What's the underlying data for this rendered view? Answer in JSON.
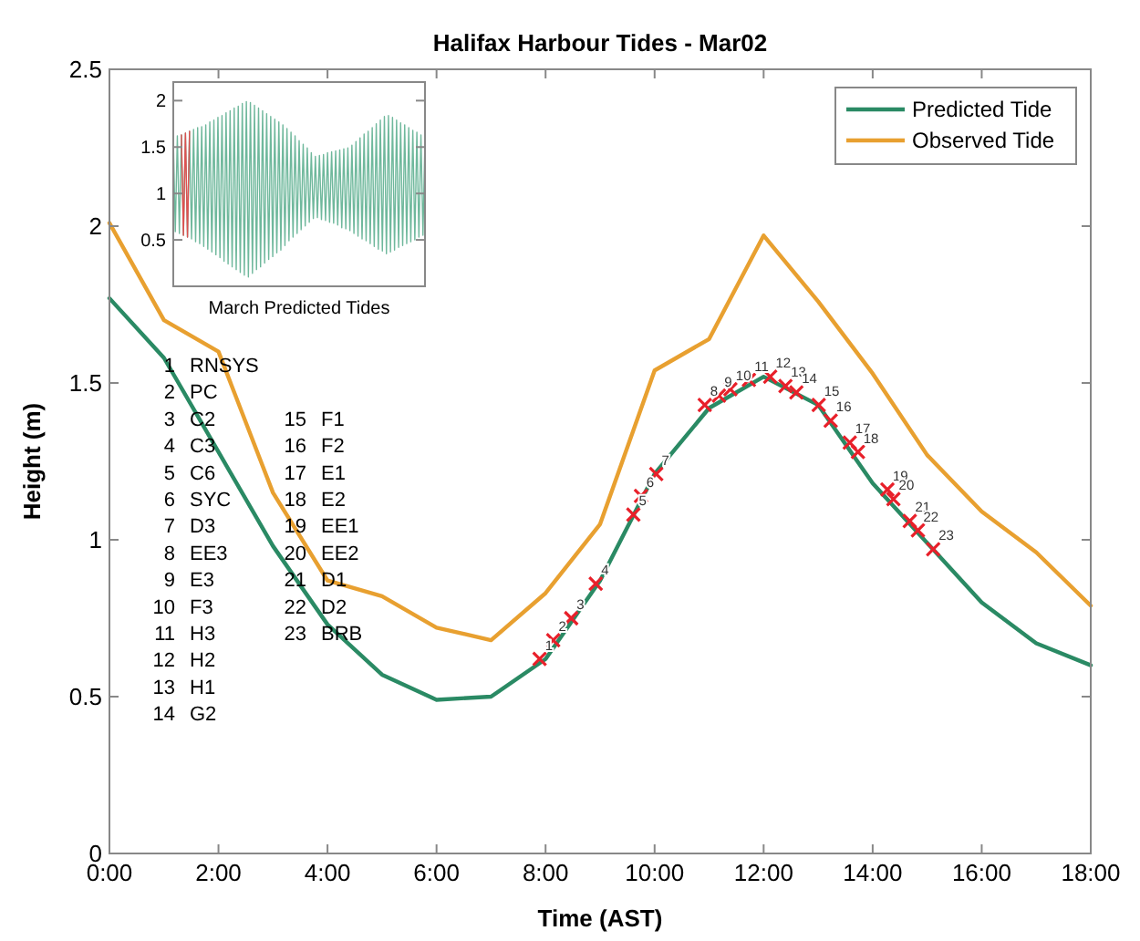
{
  "chart_data": [
    {
      "type": "line",
      "title": "Halifax Harbour Tides - Mar02",
      "xlabel": "Time (AST)",
      "ylabel": "Height (m)",
      "x": [
        0,
        1,
        2,
        3,
        4,
        5,
        6,
        7,
        8,
        9,
        10,
        11,
        12,
        13,
        14,
        15,
        16,
        17,
        18
      ],
      "series": [
        {
          "name": "Predicted Tide",
          "color": "#2a8a64",
          "values": [
            1.77,
            1.58,
            1.28,
            0.98,
            0.73,
            0.57,
            0.49,
            0.5,
            0.62,
            0.87,
            1.21,
            1.42,
            1.52,
            1.43,
            1.18,
            0.99,
            0.8,
            0.67,
            0.6
          ]
        },
        {
          "name": "Observed Tide",
          "color": "#e8a030",
          "values": [
            2.01,
            1.7,
            1.6,
            1.15,
            0.87,
            0.82,
            0.72,
            0.68,
            0.83,
            1.05,
            1.54,
            1.64,
            1.97,
            1.76,
            1.53,
            1.27,
            1.09,
            0.96,
            0.79
          ]
        },
        {
          "type": "scatter",
          "marker": "cross",
          "color": "#e8202a",
          "x": [
            7.89,
            8.14,
            8.47,
            8.92,
            9.61,
            9.75,
            10.03,
            10.92,
            11.18,
            11.39,
            11.73,
            12.12,
            12.4,
            12.6,
            13.01,
            13.23,
            13.58,
            13.73,
            14.27,
            14.38,
            14.68,
            14.83,
            15.11
          ],
          "values": [
            0.62,
            0.68,
            0.75,
            0.86,
            1.08,
            1.14,
            1.21,
            1.43,
            1.46,
            1.48,
            1.51,
            1.52,
            1.49,
            1.47,
            1.43,
            1.38,
            1.31,
            1.28,
            1.16,
            1.13,
            1.06,
            1.03,
            0.97
          ]
        }
      ],
      "xlim": [
        0,
        18
      ],
      "xticks": [
        {
          "value": 0,
          "label": "0:00"
        },
        {
          "value": 2,
          "label": "2:00"
        },
        {
          "value": 4,
          "label": "4:00"
        },
        {
          "value": 6,
          "label": "6:00"
        },
        {
          "value": 8,
          "label": "8:00"
        },
        {
          "value": 10,
          "label": "10:00"
        },
        {
          "value": 12,
          "label": "12:00"
        },
        {
          "value": 14,
          "label": "14:00"
        },
        {
          "value": 16,
          "label": "16:00"
        },
        {
          "value": 18,
          "label": "18:00"
        }
      ],
      "ylim": [
        0,
        2.5
      ],
      "yticks": [
        0,
        0.5,
        1,
        1.5,
        2,
        2.5
      ],
      "grid": false,
      "legend": "top right",
      "line_style": "solid",
      "marker": "none",
      "annotations": [
        "1  RNSYS",
        "2  PC",
        "3  C2",
        "4  C3",
        "5  C6",
        "6  SYC",
        "7  D3",
        "8  EE3",
        "9  E3",
        "10  F3",
        "11  H3",
        "12  H2",
        "13  H1",
        "14  G2",
        "15  F1",
        "16  F2",
        "17  E1",
        "18  E2",
        "19  EE1",
        "20  EE2",
        "21  D1",
        "22  D2",
        "23  BRB",
        {
          "text": "1",
          "x": 7.89,
          "y": 0.62
        },
        {
          "text": "2",
          "x": 8.14,
          "y": 0.68
        },
        {
          "text": "3",
          "x": 8.47,
          "y": 0.75
        },
        {
          "text": "4",
          "x": 8.92,
          "y": 0.86
        },
        {
          "text": "5",
          "x": 9.61,
          "y": 1.08
        },
        {
          "text": "6",
          "x": 9.75,
          "y": 1.14
        },
        {
          "text": "7",
          "x": 10.03,
          "y": 1.21
        },
        {
          "text": "8",
          "x": 10.92,
          "y": 1.43
        },
        {
          "text": "9",
          "x": 11.18,
          "y": 1.46
        },
        {
          "text": "10",
          "x": 11.39,
          "y": 1.48
        },
        {
          "text": "11",
          "x": 11.73,
          "y": 1.51
        },
        {
          "text": "12",
          "x": 12.12,
          "y": 1.52
        },
        {
          "text": "13",
          "x": 12.4,
          "y": 1.49
        },
        {
          "text": "14",
          "x": 12.6,
          "y": 1.47
        },
        {
          "text": "15",
          "x": 13.01,
          "y": 1.43
        },
        {
          "text": "16",
          "x": 13.23,
          "y": 1.38
        },
        {
          "text": "17",
          "x": 13.58,
          "y": 1.31
        },
        {
          "text": "18",
          "x": 13.73,
          "y": 1.28
        },
        {
          "text": "19",
          "x": 14.27,
          "y": 1.16
        },
        {
          "text": "20",
          "x": 14.38,
          "y": 1.13
        },
        {
          "text": "21",
          "x": 14.68,
          "y": 1.06
        },
        {
          "text": "22",
          "x": 14.83,
          "y": 1.03
        },
        {
          "text": "23",
          "x": 15.11,
          "y": 0.97
        }
      ]
    },
    {
      "type": "line",
      "xlabel": "March Predicted Tides",
      "ylim": [
        0,
        2.2
      ],
      "yticks": [
        0.5,
        1,
        1.5,
        2
      ],
      "tick_labels": "y",
      "grid": false,
      "legend": false,
      "categories": [
        null,
        null,
        null,
        null,
        null,
        null,
        null,
        null,
        null,
        null,
        null,
        null,
        null,
        null,
        null,
        null,
        null,
        null,
        null,
        null,
        null,
        null,
        null,
        null,
        null,
        null,
        null,
        null,
        null,
        null,
        null,
        null,
        null,
        null,
        null,
        null,
        null,
        null,
        null,
        null,
        null,
        null,
        null,
        null,
        null,
        null,
        null,
        null,
        null,
        null,
        null,
        null,
        null,
        null,
        null,
        null,
        null,
        null,
        null,
        null,
        null,
        null,
        null,
        null,
        null,
        null,
        null,
        null,
        null,
        null,
        null,
        null,
        null,
        null,
        null,
        null,
        null,
        null,
        null,
        null,
        null,
        null,
        null,
        null,
        null,
        null,
        null,
        null,
        null,
        null,
        null,
        null,
        null,
        null,
        null,
        null,
        null,
        null,
        null,
        null,
        null,
        null,
        null,
        null,
        null,
        null,
        null,
        null,
        null,
        null,
        null,
        null,
        null,
        null,
        null,
        null,
        null,
        null,
        null,
        null,
        null,
        null,
        null,
        null,
        null
      ],
      "series": [
        {
          "color": "#6fb89c",
          "values": [
            1.6,
            0.59,
            1.62,
            0.57,
            1.63,
            0.55,
            1.65,
            0.53,
            1.67,
            0.51,
            1.69,
            0.48,
            1.71,
            0.46,
            1.72,
            0.43,
            1.74,
            0.4,
            1.77,
            0.37,
            1.79,
            0.34,
            1.82,
            0.31,
            1.84,
            0.27,
            1.87,
            0.24,
            1.89,
            0.21,
            1.92,
            0.18,
            1.94,
            0.15,
            1.97,
            0.12,
            1.99,
            0.1,
            1.98,
            0.14,
            1.95,
            0.18,
            1.92,
            0.21,
            1.89,
            0.25,
            1.86,
            0.29,
            1.83,
            0.32,
            1.8,
            0.36,
            1.77,
            0.39,
            1.74,
            0.44,
            1.7,
            0.49,
            1.66,
            0.53,
            1.62,
            0.57,
            1.57,
            0.61,
            1.53,
            0.65,
            1.49,
            0.69,
            1.44,
            0.73,
            1.4,
            0.74,
            1.41,
            0.72,
            1.42,
            0.71,
            1.44,
            0.69,
            1.45,
            0.68,
            1.46,
            0.66,
            1.47,
            0.63,
            1.48,
            0.62,
            1.49,
            0.6,
            1.52,
            0.57,
            1.56,
            0.54,
            1.6,
            0.51,
            1.64,
            0.49,
            1.67,
            0.46,
            1.71,
            0.43,
            1.75,
            0.4,
            1.79,
            0.38,
            1.83,
            0.35,
            1.84,
            0.37,
            1.82,
            0.39,
            1.79,
            0.42,
            1.76,
            0.44,
            1.74,
            0.46,
            1.71,
            0.48,
            1.68,
            0.5,
            1.66,
            0.53,
            1.63,
            0.55,
            1.6
          ]
        },
        {
          "color": "#e05050",
          "values": [
            null,
            null,
            null,
            null,
            1.63,
            0.55,
            1.65,
            0.53,
            1.67,
            null,
            null,
            null,
            null,
            null,
            null,
            null,
            null,
            null,
            null,
            null,
            null,
            null,
            null,
            null,
            null,
            null,
            null,
            null,
            null,
            null,
            null,
            null,
            null,
            null,
            null,
            null,
            null,
            null,
            null,
            null,
            null,
            null,
            null,
            null,
            null,
            null,
            null,
            null,
            null,
            null,
            null,
            null,
            null,
            null,
            null,
            null,
            null,
            null,
            null,
            null,
            null,
            null,
            null,
            null,
            null,
            null,
            null,
            null,
            null,
            null,
            null,
            null,
            null,
            null,
            null,
            null,
            null,
            null,
            null,
            null,
            null,
            null,
            null,
            null,
            null,
            null,
            null,
            null,
            null,
            null,
            null,
            null,
            null,
            null,
            null,
            null,
            null,
            null,
            null,
            null,
            null,
            null,
            null,
            null,
            null,
            null,
            null,
            null,
            null,
            null,
            null,
            null,
            null,
            null,
            null,
            null,
            null,
            null,
            null,
            null,
            null,
            null,
            null,
            null,
            null
          ]
        }
      ]
    }
  ]
}
